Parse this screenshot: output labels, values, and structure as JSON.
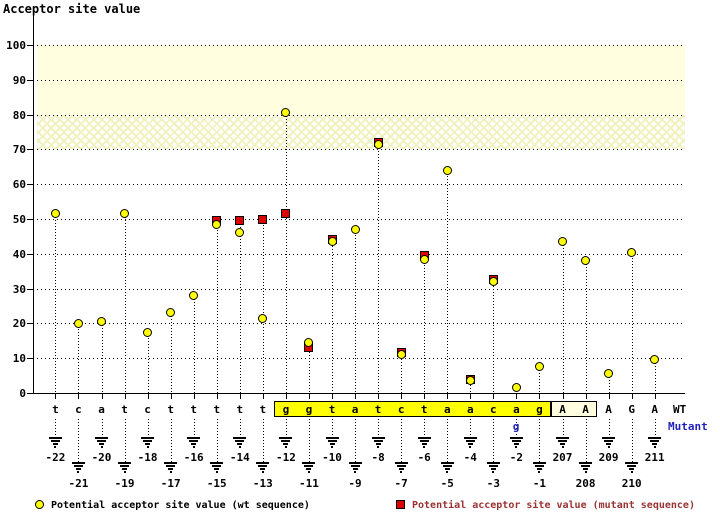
{
  "title": "Acceptor site value",
  "labels": {
    "wt_row": "WT",
    "mutant_row": "Mutant",
    "mutant_base": "g",
    "mutant_base_pos": "-2"
  },
  "legend": {
    "wt": "Potential acceptor site value (wt sequence)",
    "mutant": "Potential acceptor site value (mutant sequence)"
  },
  "colors": {
    "wt_marker": "#ffff00",
    "mutant_marker": "#dd0000",
    "mutant_text": "#993333",
    "blue_text": "#2222bb",
    "cream_band": "#ffffe0",
    "highlight_box": "#ffff00",
    "exon_box": "#ffffe0"
  },
  "chart_data": {
    "type": "scatter",
    "title": "Acceptor site value",
    "ylabel": "Acceptor site value",
    "ylim": [
      0,
      100
    ],
    "yticks": [
      0,
      10,
      20,
      30,
      40,
      50,
      60,
      70,
      80,
      90,
      100
    ],
    "grid": "dotted-horizontal",
    "bands": [
      {
        "from": 80,
        "to": 100,
        "style": "solid-cream"
      },
      {
        "from": 70,
        "to": 80,
        "style": "hatch"
      }
    ],
    "series_legend": [
      {
        "name": "Potential acceptor site value (wt sequence)",
        "marker": "yellow-circle"
      },
      {
        "name": "Potential acceptor site value (mutant sequence)",
        "marker": "red-square"
      }
    ],
    "points": [
      {
        "pos": "-22",
        "base": "t",
        "wt": 51.5,
        "mut": null
      },
      {
        "pos": "-21",
        "base": "c",
        "wt": 20,
        "mut": null
      },
      {
        "pos": "-20",
        "base": "a",
        "wt": 20.5,
        "mut": null
      },
      {
        "pos": "-19",
        "base": "t",
        "wt": 51.5,
        "mut": null
      },
      {
        "pos": "-18",
        "base": "c",
        "wt": 17.5,
        "mut": null
      },
      {
        "pos": "-17",
        "base": "t",
        "wt": 23,
        "mut": null
      },
      {
        "pos": "-16",
        "base": "t",
        "wt": 28,
        "mut": null
      },
      {
        "pos": "-15",
        "base": "t",
        "wt": 48.5,
        "mut": 49.5
      },
      {
        "pos": "-14",
        "base": "t",
        "wt": 46,
        "mut": 49.5
      },
      {
        "pos": "-13",
        "base": "t",
        "wt": 21.5,
        "mut": 50
      },
      {
        "pos": "-12",
        "base": "g",
        "wt": 80.5,
        "mut": 51.5
      },
      {
        "pos": "-11",
        "base": "g",
        "wt": 14.5,
        "mut": 13
      },
      {
        "pos": "-10",
        "base": "t",
        "wt": 43.5,
        "mut": 44
      },
      {
        "pos": "-9",
        "base": "a",
        "wt": 47,
        "mut": null
      },
      {
        "pos": "-8",
        "base": "t",
        "wt": 71.5,
        "mut": 72
      },
      {
        "pos": "-7",
        "base": "c",
        "wt": 11,
        "mut": 11.5
      },
      {
        "pos": "-6",
        "base": "t",
        "wt": 38.5,
        "mut": 39.5
      },
      {
        "pos": "-5",
        "base": "a",
        "wt": 64,
        "mut": null
      },
      {
        "pos": "-4",
        "base": "a",
        "wt": 3.5,
        "mut": 4
      },
      {
        "pos": "-3",
        "base": "c",
        "wt": 32,
        "mut": 32.5
      },
      {
        "pos": "-2",
        "base": "a",
        "wt": 1.5,
        "mut": null
      },
      {
        "pos": "-1",
        "base": "g",
        "wt": 7.5,
        "mut": null
      },
      {
        "pos": "207",
        "base": "A",
        "wt": 43.5,
        "mut": null
      },
      {
        "pos": "208",
        "base": "A",
        "wt": 38,
        "mut": null
      },
      {
        "pos": "209",
        "base": "A",
        "wt": 5.5,
        "mut": null
      },
      {
        "pos": "210",
        "base": "G",
        "wt": 40.5,
        "mut": null
      },
      {
        "pos": "211",
        "base": "A",
        "wt": 9.5,
        "mut": null
      }
    ],
    "highlight_box": {
      "from_pos": "-12",
      "to_pos": "-1",
      "sequence": "ggtatctaacag"
    },
    "exon_box": {
      "from_pos": "207",
      "to_pos": "208",
      "sequence": "AA"
    },
    "mutation": {
      "pos": "-2",
      "wt_base": "a",
      "mutant_base": "g"
    }
  }
}
